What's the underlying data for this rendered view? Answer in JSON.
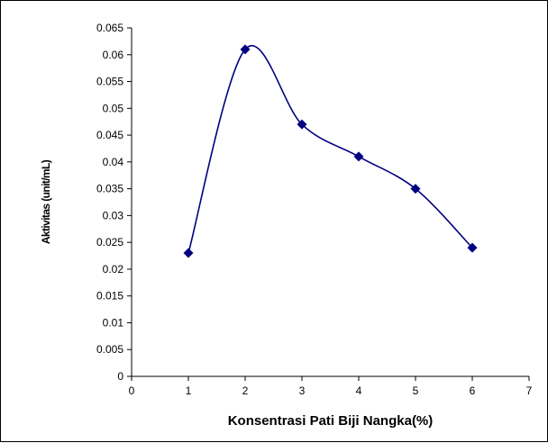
{
  "chart_data": {
    "type": "scatter",
    "smooth_line": true,
    "title": "",
    "xlabel": "Konsentrasi  Pati Biji Nangka(%)",
    "ylabel": "Aktivitas (unit/mL)",
    "xlim": [
      0,
      7
    ],
    "ylim": [
      0,
      0.065
    ],
    "x_ticks": [
      "0",
      "1",
      "2",
      "3",
      "4",
      "5",
      "6",
      "7"
    ],
    "y_ticks": [
      "0",
      "0.005",
      "0.01",
      "0.015",
      "0.02",
      "0.025",
      "0.03",
      "0.035",
      "0.04",
      "0.045",
      "0.05",
      "0.055",
      "0.06",
      "0.065"
    ],
    "grid": false,
    "legend": "none",
    "series": [
      {
        "x": [
          1,
          2,
          3,
          4,
          5,
          6
        ],
        "y": [
          0.023,
          0.061,
          0.047,
          0.041,
          0.035,
          0.024
        ],
        "color": "#000080",
        "marker": "diamond"
      }
    ]
  }
}
